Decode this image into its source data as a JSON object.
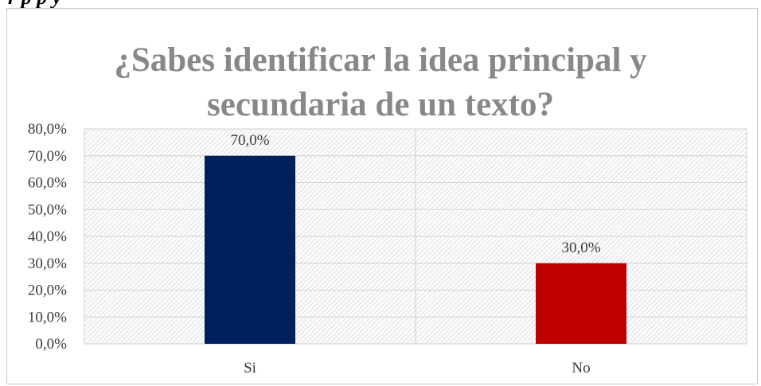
{
  "caption_fragment": "r p p y",
  "chart_data": {
    "type": "bar",
    "title_lines": [
      "¿Sabes identificar la idea principal y",
      "secundaria de un texto?"
    ],
    "categories": [
      "Si",
      "No"
    ],
    "values": [
      70.0,
      30.0
    ],
    "value_labels": [
      "70,0%",
      "30,0%"
    ],
    "bar_colors": [
      "#00205b",
      "#c00000"
    ],
    "ylim": [
      0,
      80
    ],
    "yticks": [
      0,
      10,
      20,
      30,
      40,
      50,
      60,
      70,
      80
    ],
    "ytick_labels": [
      "0,0%",
      "10,0%",
      "20,0%",
      "30,0%",
      "40,0%",
      "50,0%",
      "60,0%",
      "70,0%",
      "80,0%"
    ],
    "grid": true,
    "xlabel": "",
    "ylabel": ""
  }
}
